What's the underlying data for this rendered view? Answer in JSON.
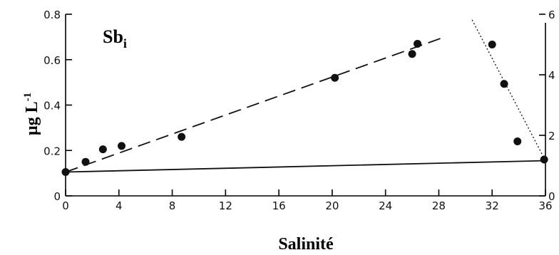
{
  "chart_data": {
    "type": "scatter",
    "title": "Sb",
    "title_subscript": "i",
    "xlabel": "Salinité",
    "ylabel": "µg L",
    "ylabel_superscript": "-1",
    "xlim": [
      0,
      36
    ],
    "ylim": [
      0,
      0.8
    ],
    "y2lim": [
      0,
      6
    ],
    "x_ticks": [
      0,
      4,
      8,
      12,
      16,
      20,
      24,
      28,
      32,
      36
    ],
    "x_tick_labels": [
      "0",
      "4",
      "8",
      "12",
      "16",
      "20",
      "24",
      "28",
      "32",
      "36"
    ],
    "y_ticks": [
      0,
      0.2,
      0.4,
      0.6,
      0.8
    ],
    "y_tick_labels": [
      "0",
      "0.2",
      "0.4",
      "0.6",
      "0.8"
    ],
    "y2_ticks": [
      0,
      2,
      4,
      6
    ],
    "y2_tick_labels": [
      "0",
      "2",
      "4",
      "6"
    ],
    "grid": false,
    "series": [
      {
        "axis": "left",
        "marker": "filled-circle",
        "x": [
          0,
          1.5,
          2.8,
          4.2,
          8.7,
          20.2,
          26.0,
          26.4
        ],
        "y": [
          0.105,
          0.15,
          0.205,
          0.22,
          0.26,
          0.52,
          0.625,
          0.67
        ]
      },
      {
        "axis": "right",
        "marker": "filled-circle",
        "x": [
          32.0,
          32.9,
          33.9,
          35.9
        ],
        "y2": [
          5.0,
          3.7,
          1.8,
          1.2
        ]
      }
    ],
    "lines": [
      {
        "style": "long-dash",
        "axis": "left",
        "x": [
          0,
          28.2
        ],
        "y": [
          0.105,
          0.695
        ]
      },
      {
        "style": "dotted",
        "axis": "left",
        "x": [
          30.5,
          36
        ],
        "y": [
          0.775,
          0.155
        ]
      },
      {
        "style": "solid",
        "axis": "left",
        "x": [
          0,
          36
        ],
        "y": [
          0.105,
          0.155
        ]
      }
    ],
    "colors": {
      "ink": "#111111",
      "background": "#ffffff"
    }
  }
}
